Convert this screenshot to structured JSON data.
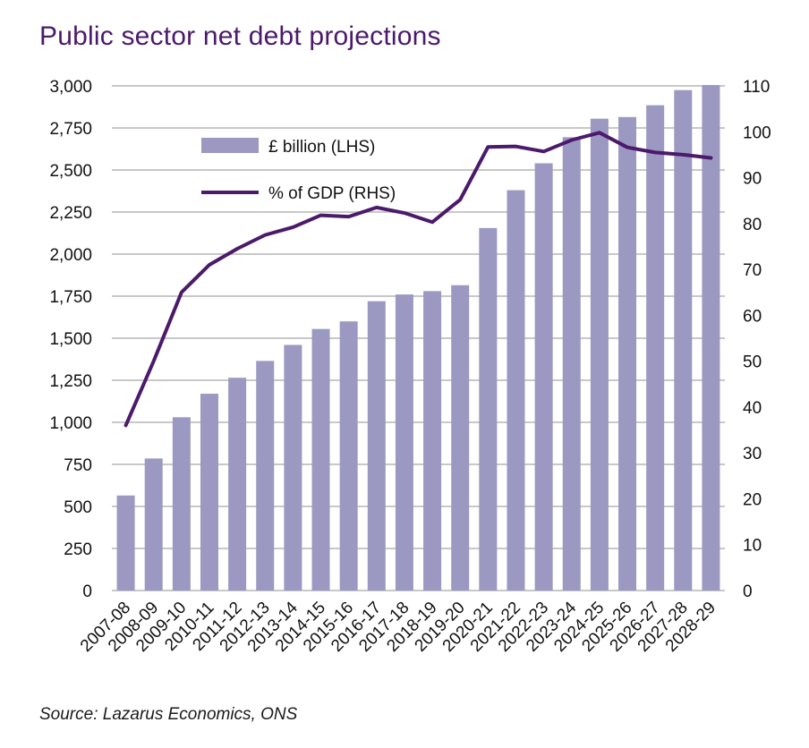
{
  "title": "Public sector net debt projections",
  "source": "Source: Lazarus Economics, ONS",
  "colors": {
    "bar": "#9B98C2",
    "line": "#4B1A6B",
    "grid": "#C8C8C8",
    "title": "#4B1A6B"
  },
  "chart_data": {
    "type": "bar",
    "title": "Public sector net debt projections",
    "categories": [
      "2007-08",
      "2008-09",
      "2009-10",
      "2010-11",
      "2011-12",
      "2012-13",
      "2013-14",
      "2014-15",
      "2015-16",
      "2016-17",
      "2017-18",
      "2018-19",
      "2019-20",
      "2020-21",
      "2021-22",
      "2022-23",
      "2023-24",
      "2024-25",
      "2025-26",
      "2026-27",
      "2027-28",
      "2028-29"
    ],
    "series": [
      {
        "name": "£ billion (LHS)",
        "type": "bar",
        "axis": "left",
        "values": [
          565,
          785,
          1030,
          1170,
          1265,
          1365,
          1460,
          1555,
          1600,
          1720,
          1760,
          1780,
          1815,
          2155,
          2380,
          2540,
          2695,
          2805,
          2815,
          2885,
          2975,
          3005
        ]
      },
      {
        "name": "% of GDP (RHS)",
        "type": "line",
        "axis": "right",
        "values": [
          36,
          50,
          65,
          71,
          74.5,
          77.5,
          79.2,
          81.8,
          81.5,
          83.5,
          82.3,
          80.3,
          85.2,
          96.7,
          96.8,
          95.7,
          98.2,
          99.8,
          96.6,
          95.5,
          95.0,
          94.3
        ]
      }
    ],
    "ylim_left": [
      0,
      3000
    ],
    "yticks_left": [
      "0",
      "250",
      "500",
      "750",
      "1,000",
      "1,250",
      "1,500",
      "1,750",
      "2,000",
      "2,250",
      "2,500",
      "2,750",
      "3,000"
    ],
    "ylim_right": [
      0,
      110
    ],
    "yticks_right": [
      "0",
      "10",
      "20",
      "30",
      "40",
      "50",
      "60",
      "70",
      "80",
      "90",
      "100",
      "110"
    ],
    "grid": true,
    "legend_position": "top-left"
  }
}
